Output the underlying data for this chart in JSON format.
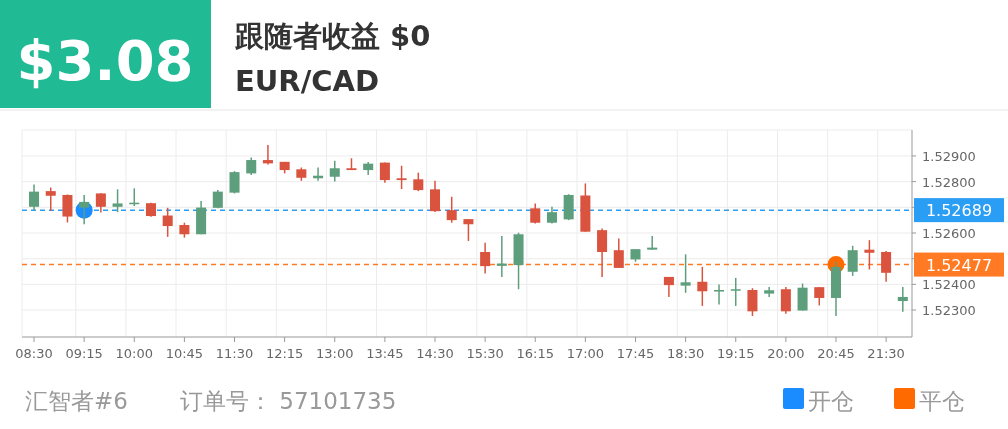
{
  "chart_data": {
    "type": "candlestick",
    "title": "EUR/CAD",
    "subtitle": "跟随者收益 $0",
    "annotations": [
      "$3.08",
      "汇智者#6",
      "订单号： 57101735"
    ],
    "categories": [
      "08:30",
      null,
      null,
      "09:15",
      null,
      null,
      "10:00",
      null,
      null,
      "10:45",
      null,
      null,
      "11:30",
      null,
      null,
      "12:15",
      null,
      null,
      "13:00",
      null,
      null,
      "13:45",
      null,
      null,
      "14:30",
      null,
      null,
      "15:30",
      null,
      null,
      "16:15",
      null,
      null,
      "17:00",
      null,
      null,
      "17:45",
      null,
      null,
      "18:30",
      null,
      null,
      "19:15",
      null,
      null,
      "20:00",
      null,
      null,
      "20:45",
      null,
      null,
      "21:30",
      null
    ],
    "ohlc": [
      [
        1.52702,
        1.52789,
        1.52689,
        1.52761
      ],
      [
        1.52763,
        1.52777,
        1.52686,
        1.52745
      ],
      [
        1.52748,
        1.5275,
        1.52641,
        1.52664
      ],
      [
        1.52699,
        1.52748,
        1.52634,
        1.52721
      ],
      [
        1.52754,
        1.52755,
        1.5268,
        1.52702
      ],
      [
        1.52702,
        1.5277,
        1.52681,
        1.52715
      ],
      [
        1.52712,
        1.52774,
        1.52705,
        1.52718
      ],
      [
        1.52716,
        1.52718,
        1.52663,
        1.52666
      ],
      [
        1.52668,
        1.52698,
        1.52585,
        1.52627
      ],
      [
        1.52631,
        1.5264,
        1.52582,
        1.52595
      ],
      [
        1.52595,
        1.52725,
        1.52595,
        1.52699
      ],
      [
        1.52698,
        1.52767,
        1.52696,
        1.52761
      ],
      [
        1.52757,
        1.52841,
        1.52754,
        1.52837
      ],
      [
        1.52832,
        1.52894,
        1.52826,
        1.52884
      ],
      [
        1.52884,
        1.52943,
        1.52867,
        1.52871
      ],
      [
        1.52877,
        1.52877,
        1.52832,
        1.52845
      ],
      [
        1.52848,
        1.52855,
        1.52803,
        1.52815
      ],
      [
        1.52813,
        1.52855,
        1.52803,
        1.52823
      ],
      [
        1.52819,
        1.52881,
        1.528,
        1.52852
      ],
      [
        1.52852,
        1.52891,
        1.52845,
        1.52845
      ],
      [
        1.52845,
        1.52876,
        1.52826,
        1.5287
      ],
      [
        1.52874,
        1.52874,
        1.52796,
        1.52806
      ],
      [
        1.52813,
        1.52862,
        1.52771,
        1.52806
      ],
      [
        1.52809,
        1.52835,
        1.52763,
        1.52767
      ],
      [
        1.5277,
        1.52803,
        1.52682,
        1.52685
      ],
      [
        1.52689,
        1.52741,
        1.5264,
        1.5265
      ],
      [
        1.52654,
        1.52654,
        1.52569,
        1.52634
      ],
      [
        1.52526,
        1.52562,
        1.52442,
        1.52471
      ],
      [
        1.52472,
        1.52588,
        1.52429,
        1.52481
      ],
      [
        1.52475,
        1.52601,
        1.52381,
        1.52595
      ],
      [
        1.52696,
        1.52715,
        1.52637,
        1.5264
      ],
      [
        1.5264,
        1.52702,
        1.52637,
        1.52681
      ],
      [
        1.52653,
        1.52751,
        1.5265,
        1.52748
      ],
      [
        1.52746,
        1.52793,
        1.52605,
        1.52605
      ],
      [
        1.52611,
        1.52617,
        1.52429,
        1.52526
      ],
      [
        1.52533,
        1.52579,
        1.52464,
        1.52464
      ],
      [
        1.52497,
        1.52537,
        1.52488,
        1.52537
      ],
      [
        1.52535,
        1.52588,
        1.52535,
        1.52543
      ],
      [
        1.52429,
        1.52429,
        1.52351,
        1.52397
      ],
      [
        1.52395,
        1.52517,
        1.52367,
        1.52408
      ],
      [
        1.5241,
        1.52468,
        1.52316,
        1.52373
      ],
      [
        1.52372,
        1.52399,
        1.52322,
        1.52378
      ],
      [
        1.52376,
        1.52425,
        1.52316,
        1.52381
      ],
      [
        1.52378,
        1.52385,
        1.52277,
        1.52295
      ],
      [
        1.52364,
        1.5239,
        1.52351,
        1.52377
      ],
      [
        1.52381,
        1.5239,
        1.52286,
        1.52295
      ],
      [
        1.52298,
        1.52403,
        1.52298,
        1.52387
      ],
      [
        1.52389,
        1.52389,
        1.52318,
        1.52347
      ],
      [
        1.52347,
        1.52488,
        1.52277,
        1.52468
      ],
      [
        1.52449,
        1.5255,
        1.52433,
        1.52533
      ],
      [
        1.52535,
        1.52572,
        1.52458,
        1.52523
      ],
      [
        1.52526,
        1.5253,
        1.5241,
        1.52445
      ],
      [
        1.52335,
        1.5239,
        1.52293,
        1.52351
      ]
    ],
    "colors": [
      "#5d9e7c",
      "#d9533f",
      "#d9533f",
      "#5d9e7c",
      "#d9533f",
      "#5d9e7c",
      "#5d9e7c",
      "#d9533f",
      "#d9533f",
      "#d9533f",
      "#5d9e7c",
      "#5d9e7c",
      "#5d9e7c",
      "#5d9e7c",
      "#d9533f",
      "#d9533f",
      "#d9533f",
      "#5d9e7c",
      "#5d9e7c",
      "#d9533f",
      "#5d9e7c",
      "#d9533f",
      "#d9533f",
      "#d9533f",
      "#d9533f",
      "#d9533f",
      "#d9533f",
      "#d9533f",
      "#5d9e7c",
      "#5d9e7c",
      "#d9533f",
      "#5d9e7c",
      "#5d9e7c",
      "#d9533f",
      "#d9533f",
      "#d9533f",
      "#5d9e7c",
      "#5d9e7c",
      "#d9533f",
      "#5d9e7c",
      "#d9533f",
      "#5d9e7c",
      "#5d9e7c",
      "#d9533f",
      "#5d9e7c",
      "#d9533f",
      "#5d9e7c",
      "#d9533f",
      "#5d9e7c",
      "#5d9e7c",
      "#d9533f",
      "#d9533f",
      "#5d9e7c"
    ],
    "ylim": [
      1.52195,
      1.53001
    ],
    "yticks": [
      {
        "value": 1.523,
        "label": "1.52300"
      },
      {
        "value": 1.524,
        "label": "1.52400"
      },
      {
        "value": 1.525,
        "label": null
      },
      {
        "value": 1.526,
        "label": "1.52600"
      },
      {
        "value": 1.527,
        "label": null
      },
      {
        "value": 1.528,
        "label": "1.52800"
      },
      {
        "value": 1.529,
        "label": "1.52900"
      }
    ],
    "grid": true,
    "legend": "bottom right",
    "ref_lines": [
      {
        "axis": "y",
        "value": 1.52689,
        "label": "1.52689",
        "color": "#2a9df4",
        "line_style": "dashed"
      },
      {
        "axis": "y",
        "value": 1.52477,
        "label": "1.52477",
        "color": "#ff7a22",
        "line_style": "dashed"
      }
    ],
    "series": [
      {
        "name": "开仓",
        "type": "scatter",
        "marker": "circle",
        "color": "#1a8cff",
        "x": [
          "09:15"
        ],
        "values": [
          1.52689
        ]
      },
      {
        "name": "平仓",
        "type": "scatter",
        "marker": "circle",
        "color": "#ff6a00",
        "x": [
          "20:45"
        ],
        "values": [
          1.52477
        ]
      }
    ]
  }
}
